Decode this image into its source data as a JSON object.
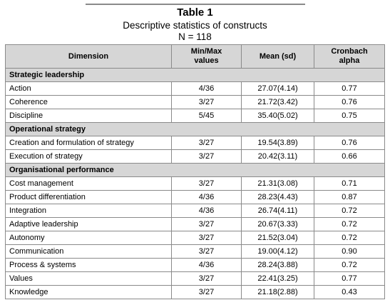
{
  "caption": {
    "title": "Table 1",
    "subtitle": "Descriptive statistics of constructs",
    "n": "N = 118"
  },
  "headers": {
    "dimension": "Dimension",
    "minmax_line1": "Min/Max",
    "minmax_line2": "values",
    "mean": "Mean (sd)",
    "alpha_line1": "Cronbach",
    "alpha_line2": "alpha"
  },
  "sections": [
    {
      "title": "Strategic leadership",
      "rows": [
        {
          "dimension": "Action",
          "minmax": "4/36",
          "mean": "27.07(4.14)",
          "alpha": "0.77"
        },
        {
          "dimension": "Coherence",
          "minmax": "3/27",
          "mean": "21.72(3.42)",
          "alpha": "0.76"
        },
        {
          "dimension": "Discipline",
          "minmax": "5/45",
          "mean": "35.40(5.02)",
          "alpha": "0.75"
        }
      ]
    },
    {
      "title": "Operational strategy",
      "rows": [
        {
          "dimension": "Creation and formulation of strategy",
          "minmax": "3/27",
          "mean": "19.54(3.89)",
          "alpha": "0.76"
        },
        {
          "dimension": "Execution of strategy",
          "minmax": "3/27",
          "mean": "20.42(3.11)",
          "alpha": "0.66"
        }
      ]
    },
    {
      "title": "Organisational performance",
      "rows": [
        {
          "dimension": "Cost management",
          "minmax": "3/27",
          "mean": "21.31(3.08)",
          "alpha": "0.71"
        },
        {
          "dimension": "Product differentiation",
          "minmax": "4/36",
          "mean": "28.23(4.43)",
          "alpha": "0.87"
        },
        {
          "dimension": "Integration",
          "minmax": "4/36",
          "mean": "26.74(4.11)",
          "alpha": "0.72"
        },
        {
          "dimension": "Adaptive leadership",
          "minmax": "3/27",
          "mean": "20.67(3.33)",
          "alpha": "0.72"
        },
        {
          "dimension": "Autonomy",
          "minmax": "3/27",
          "mean": "21.52(3.04)",
          "alpha": "0.72"
        },
        {
          "dimension": "Communication",
          "minmax": "3/27",
          "mean": "19.00(4.12)",
          "alpha": "0.90"
        },
        {
          "dimension": "Process & systems",
          "minmax": "4/36",
          "mean": "28.24(3.88)",
          "alpha": "0.72"
        },
        {
          "dimension": "Values",
          "minmax": "3/27",
          "mean": "22.41(3.25)",
          "alpha": "0.77"
        },
        {
          "dimension": "Knowledge",
          "minmax": "3/27",
          "mean": "21.18(2.88)",
          "alpha": "0.43"
        }
      ]
    }
  ]
}
